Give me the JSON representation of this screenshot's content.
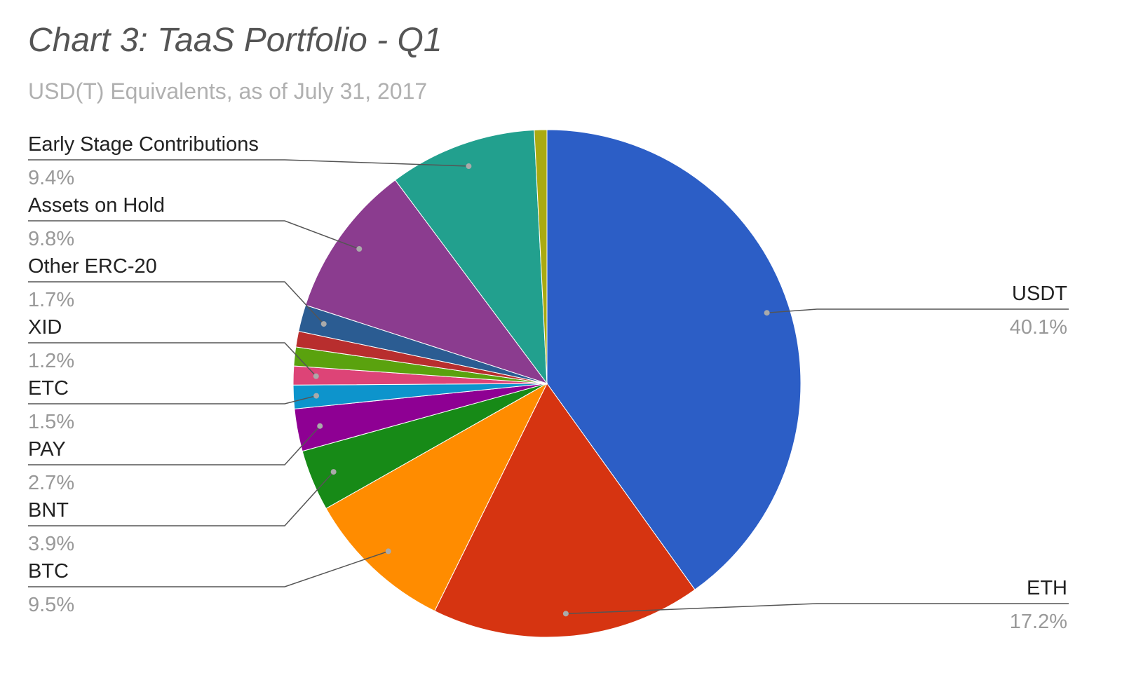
{
  "chart_data": {
    "type": "pie",
    "title": "Chart 3: TaaS Portfolio - Q1",
    "subtitle": "USD(T) Equivalents, as of July 31, 2017",
    "start_angle_deg": 0,
    "direction": "clockwise",
    "slices": [
      {
        "label": "USDT",
        "value": 40.1,
        "percent_label": "40.1%",
        "color": "#2c5ec6",
        "labeled": true
      },
      {
        "label": "ETH",
        "value": 17.2,
        "percent_label": "17.2%",
        "color": "#d63411",
        "labeled": true
      },
      {
        "label": "BTC",
        "value": 9.5,
        "percent_label": "9.5%",
        "color": "#ff8c00",
        "labeled": true
      },
      {
        "label": "BNT",
        "value": 3.9,
        "percent_label": "3.9%",
        "color": "#178a17",
        "labeled": true
      },
      {
        "label": "PAY",
        "value": 2.7,
        "percent_label": "2.7%",
        "color": "#8e0093",
        "labeled": true
      },
      {
        "label": "ETC",
        "value": 1.5,
        "percent_label": "1.5%",
        "color": "#0d94cc",
        "labeled": true
      },
      {
        "label": "XID",
        "value": 1.2,
        "percent_label": "1.2%",
        "color": "#dd4477",
        "labeled": true
      },
      {
        "label": "",
        "value": 1.2,
        "percent_label": "",
        "color": "#5aa20e",
        "labeled": false
      },
      {
        "label": "",
        "value": 1.0,
        "percent_label": "",
        "color": "#b82e2e",
        "labeled": false
      },
      {
        "label": "Other ERC-20",
        "value": 1.7,
        "percent_label": "1.7%",
        "color": "#2b5c92",
        "labeled": true
      },
      {
        "label": "Assets on Hold",
        "value": 9.8,
        "percent_label": "9.8%",
        "color": "#8b3c8f",
        "labeled": true
      },
      {
        "label": "Early Stage Contributions",
        "value": 9.4,
        "percent_label": "9.4%",
        "color": "#22a08e",
        "labeled": true
      },
      {
        "label": "",
        "value": 0.8,
        "percent_label": "",
        "color": "#aaaa11",
        "labeled": false
      }
    ]
  }
}
